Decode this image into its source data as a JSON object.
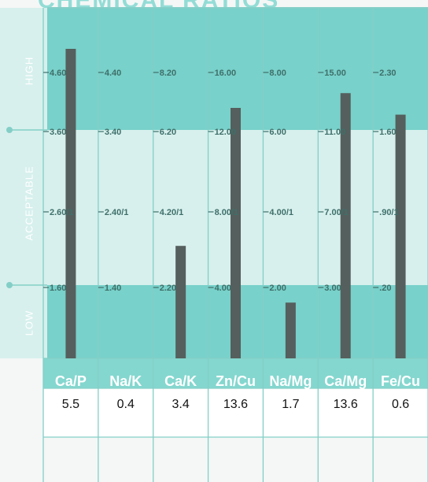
{
  "header": {
    "title_fragment": "CHEMICAL RATIOS"
  },
  "zones": {
    "high": "HIGH",
    "acceptable": "ACCEPTABLE",
    "low": "LOW"
  },
  "colors": {
    "zone_dark": "#78d1ca",
    "zone_light": "#d7f0ed",
    "header_row": "#84d7cf",
    "bar": "#555f5d",
    "grid": "#83cfc7"
  },
  "chart_data": {
    "type": "bar",
    "categories": [
      "Ca/P",
      "Na/K",
      "Ca/K",
      "Zn/Cu",
      "Na/Mg",
      "Ca/Mg",
      "Fe/Cu"
    ],
    "values": [
      5.5,
      0.4,
      3.4,
      13.6,
      1.7,
      13.6,
      0.6
    ],
    "bar_levels": [
      5.0,
      0.4,
      3.3,
      13.6,
      1.6,
      13.6,
      1.8
    ],
    "scale_labels": [
      [
        "4.60",
        "3.60",
        "2.60/1",
        "1.60"
      ],
      [
        "4.40",
        "3.40",
        "2.40/1",
        "1.40"
      ],
      [
        "8.20",
        "6.20",
        "4.20/1",
        "2.20"
      ],
      [
        "16.00",
        "12.00",
        "8.00/1",
        "4.00"
      ],
      [
        "8.00",
        "6.00",
        "4.00/1",
        "2.00"
      ],
      [
        "15.00",
        "11.00",
        "7.00/1",
        "3.00"
      ],
      [
        "2.30",
        "1.60",
        ".90/1",
        ".20"
      ]
    ],
    "scale_values": [
      [
        4.6,
        3.6,
        2.6,
        1.6
      ],
      [
        4.4,
        3.4,
        2.4,
        1.4
      ],
      [
        8.2,
        6.2,
        4.2,
        2.2
      ],
      [
        16,
        12,
        8,
        4
      ],
      [
        8,
        6,
        4,
        2
      ],
      [
        15,
        11,
        7,
        3
      ],
      [
        2.3,
        1.6,
        0.9,
        0.2
      ]
    ],
    "zones": [
      "HIGH",
      "ACCEPTABLE",
      "LOW"
    ],
    "grid": true,
    "legend": "none"
  }
}
